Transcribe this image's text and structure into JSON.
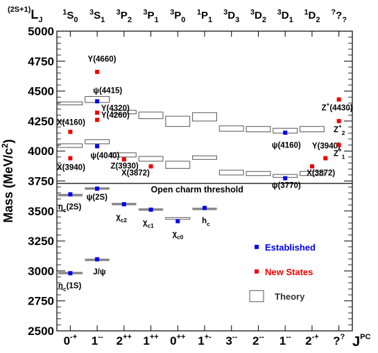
{
  "chart_data": {
    "type": "scatter",
    "title": "",
    "ylabel": "Mass (MeV/c²)",
    "ylim": [
      2500,
      5000
    ],
    "yticks": [
      "2500",
      "2750",
      "3000",
      "3250",
      "3500",
      "3750",
      "4000",
      "4250",
      "4500",
      "4750",
      "5000"
    ],
    "top_axis_title": "(2S+1)LJ",
    "bottom_axis_title": "JPC",
    "columns": [
      {
        "jpc": "0-+",
        "term": "1S0"
      },
      {
        "jpc": "1--",
        "term": "3S1"
      },
      {
        "jpc": "2++",
        "term": "3P2"
      },
      {
        "jpc": "1++",
        "term": "3P1"
      },
      {
        "jpc": "0++",
        "term": "3P0"
      },
      {
        "jpc": "1+-",
        "term": "1P1"
      },
      {
        "jpc": "3--",
        "term": "3D3"
      },
      {
        "jpc": "2--",
        "term": "3D2"
      },
      {
        "jpc": "1--",
        "term": "3D1"
      },
      {
        "jpc": "2-+",
        "term": "1D2"
      },
      {
        "jpc": "??",
        "term": "??"
      }
    ],
    "threshold": {
      "mass": 3730,
      "label": "Open charm threshold"
    },
    "theory_boxes": [
      {
        "col": 0,
        "low": 2975,
        "high": 2985
      },
      {
        "col": 0,
        "low": 3625,
        "high": 3635
      },
      {
        "col": 0,
        "low": 4030,
        "high": 4060
      },
      {
        "col": 0,
        "low": 4385,
        "high": 4410
      },
      {
        "col": 1,
        "low": 3085,
        "high": 3095
      },
      {
        "col": 1,
        "low": 3680,
        "high": 3690
      },
      {
        "col": 1,
        "low": 4060,
        "high": 4095
      },
      {
        "col": 1,
        "low": 4405,
        "high": 4455
      },
      {
        "col": 2,
        "low": 3555,
        "high": 3560
      },
      {
        "col": 2,
        "low": 3950,
        "high": 3985
      },
      {
        "col": 2,
        "low": 4310,
        "high": 4340
      },
      {
        "col": 3,
        "low": 3505,
        "high": 3515
      },
      {
        "col": 3,
        "low": 3915,
        "high": 3955
      },
      {
        "col": 3,
        "low": 4270,
        "high": 4325
      },
      {
        "col": 4,
        "low": 3430,
        "high": 3445
      },
      {
        "col": 4,
        "low": 3855,
        "high": 3915
      },
      {
        "col": 4,
        "low": 4205,
        "high": 4290
      },
      {
        "col": 5,
        "low": 3515,
        "high": 3520
      },
      {
        "col": 5,
        "low": 3930,
        "high": 3960
      },
      {
        "col": 5,
        "low": 4250,
        "high": 4320
      },
      {
        "col": 6,
        "low": 3800,
        "high": 3840
      },
      {
        "col": 6,
        "low": 4165,
        "high": 4210
      },
      {
        "col": 7,
        "low": 3795,
        "high": 3830
      },
      {
        "col": 7,
        "low": 4160,
        "high": 4205
      },
      {
        "col": 8,
        "low": 3780,
        "high": 3805
      },
      {
        "col": 8,
        "low": 4150,
        "high": 4190
      },
      {
        "col": 9,
        "low": 3795,
        "high": 3830
      },
      {
        "col": 9,
        "low": 4160,
        "high": 4205
      }
    ],
    "series": [
      {
        "name": "Established",
        "color": "#0000ee",
        "points": [
          {
            "col": 0,
            "offset": 0.0,
            "mass": 2981,
            "label": "ηc(1S)",
            "ldx": -0.45,
            "ldy": -22
          },
          {
            "col": 0,
            "offset": 0.0,
            "mass": 3639,
            "label": "ηc(2S)",
            "ldx": -0.45,
            "ldy": -22
          },
          {
            "col": 1,
            "offset": 0.0,
            "mass": 3097,
            "label": "J/ψ",
            "ldx": -0.15,
            "ldy": -22
          },
          {
            "col": 1,
            "offset": 0.0,
            "mass": 3686,
            "label": "ψ(2S)",
            "ldx": -0.4,
            "ldy": -16
          },
          {
            "col": 1,
            "offset": 0.0,
            "mass": 4040,
            "label": "ψ(4040)",
            "ldx": -0.25,
            "ldy": -17
          },
          {
            "col": 1,
            "offset": 0.0,
            "mass": 4415,
            "label": "ψ(4415)",
            "ldx": -0.15,
            "ldy": 12
          },
          {
            "col": 2,
            "offset": 0.0,
            "mass": 3556,
            "label": "χc2",
            "ldx": -0.3,
            "ldy": -22
          },
          {
            "col": 3,
            "offset": 0.0,
            "mass": 3511,
            "label": "χc1",
            "ldx": -0.3,
            "ldy": -22
          },
          {
            "col": 4,
            "offset": 0.0,
            "mass": 3415,
            "label": "χc0",
            "ldx": -0.2,
            "ldy": -22
          },
          {
            "col": 5,
            "offset": 0.0,
            "mass": 3525,
            "label": "hc",
            "ldx": -0.1,
            "ldy": -22
          },
          {
            "col": 8,
            "offset": 0.0,
            "mass": 3773,
            "label": "ψ(3770)",
            "ldx": -0.5,
            "ldy": -14
          },
          {
            "col": 8,
            "offset": 0.0,
            "mass": 4153,
            "label": "ψ(4160)",
            "ldx": -0.5,
            "ldy": -22
          }
        ]
      },
      {
        "name": "New States",
        "color": "#ee0000",
        "points": [
          {
            "col": 0,
            "offset": 0.0,
            "mass": 3940,
            "label": "X(3940)",
            "ldx": -0.5,
            "ldy": -17
          },
          {
            "col": 0,
            "offset": 0.0,
            "mass": 4160,
            "label": "X(4160)",
            "ldx": -0.5,
            "ldy": 10
          },
          {
            "col": 1,
            "offset": 0.0,
            "mass": 4260,
            "label": "Y(4260)",
            "ldx": 0.15,
            "ldy": 3
          },
          {
            "col": 1,
            "offset": 0.0,
            "mass": 4320,
            "label": "Y(4320)",
            "ldx": 0.15,
            "ldy": 3
          },
          {
            "col": 1,
            "offset": 0.0,
            "mass": 4660,
            "label": "Y(4660)",
            "ldx": -0.35,
            "ldy": 15
          },
          {
            "col": 2,
            "offset": 0.0,
            "mass": 3930,
            "label": "Z(3930)",
            "ldx": -0.5,
            "ldy": -13
          },
          {
            "col": 3,
            "offset": 0.0,
            "mass": 3872,
            "label": "X(3872)",
            "ldx": -1.1,
            "ldy": -13
          },
          {
            "col": 9,
            "offset": 0.0,
            "mass": 3872,
            "label": "X(3872)",
            "ldx": -0.2,
            "ldy": -13
          },
          {
            "col": 9,
            "offset": 0.5,
            "mass": 3940,
            "label": "Y(3940)",
            "ldx": -0.5,
            "ldy": 14
          },
          {
            "col": 10,
            "offset": 0.0,
            "mass": 4050,
            "label": "Z1+",
            "ldx": -0.2,
            "ldy": -16
          },
          {
            "col": 10,
            "offset": 0.0,
            "mass": 4250,
            "label": "Z2+",
            "ldx": -0.2,
            "ldy": -16
          },
          {
            "col": 10,
            "offset": 0.0,
            "mass": 4430,
            "label": "Z+(4430)",
            "ldx": -0.65,
            "ldy": -16
          }
        ]
      }
    ],
    "legend": [
      {
        "label": "Established",
        "kind": "marker",
        "color": "#0000ee"
      },
      {
        "label": "New States",
        "kind": "marker",
        "color": "#ee0000"
      },
      {
        "label": "Theory",
        "kind": "box",
        "color": "#000000"
      }
    ],
    "legend_position": "lower-right"
  }
}
